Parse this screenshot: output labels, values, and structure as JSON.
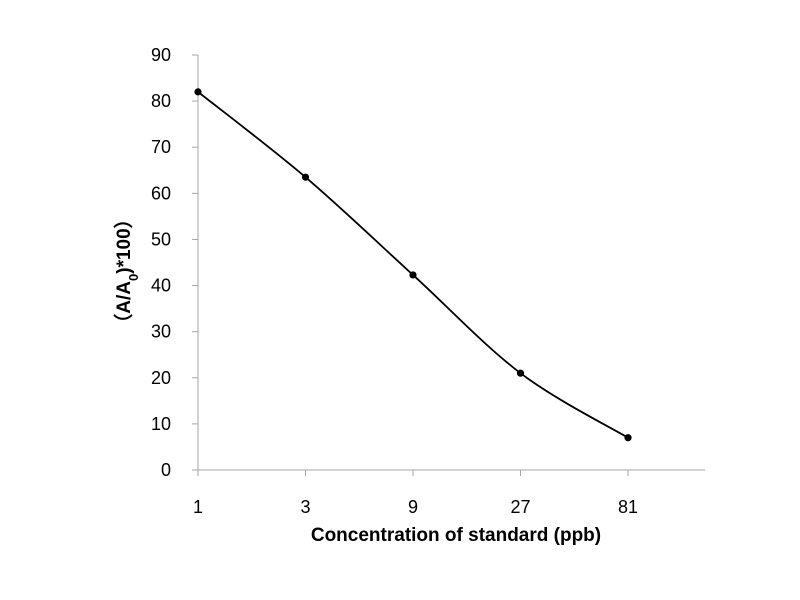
{
  "chart_data": {
    "type": "line",
    "categories": [
      "1",
      "3",
      "9",
      "27",
      "81"
    ],
    "x": [
      1,
      3,
      9,
      27,
      81
    ],
    "x_scale": "log",
    "values": [
      82,
      63.5,
      42.3,
      21,
      7
    ],
    "xlabel": "Concentration of standard (ppb)",
    "ylabel": {
      "prefix": "（A/A",
      "subscript": "0",
      "suffix": ")*100）"
    },
    "ylim": [
      0,
      90
    ],
    "yticks": [
      "0",
      "10",
      "20",
      "30",
      "40",
      "50",
      "60",
      "70",
      "80",
      "90"
    ],
    "line_color": "#000000",
    "marker_color": "#000000",
    "axis_color": "#a6a6a6",
    "grid": false,
    "smoothed": true
  }
}
